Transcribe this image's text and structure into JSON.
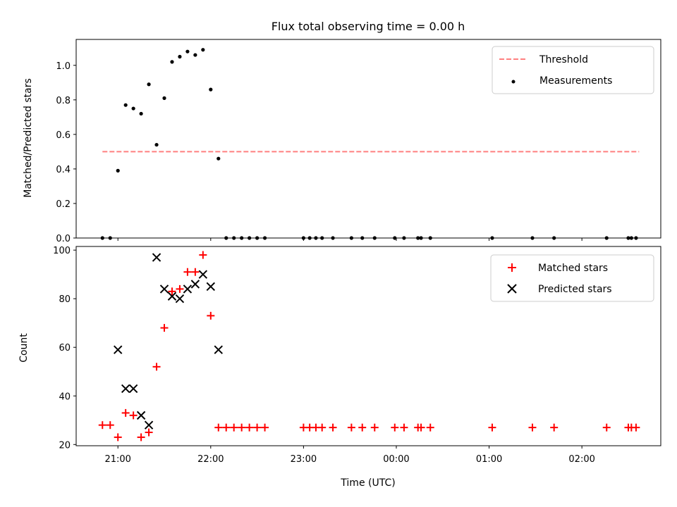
{
  "chart_data": [
    {
      "type": "scatter",
      "title": "Flux total observing time = 0.00 h",
      "xlabel": "",
      "ylabel": "Matched/Predicted stars",
      "xaxis_type": "time",
      "xlim": [
        "20:33",
        "02:51"
      ],
      "ylim": [
        0,
        1.15
      ],
      "yticks": [
        "0.0",
        "0.2",
        "0.4",
        "0.6",
        "0.8",
        "1.0"
      ],
      "grid": false,
      "legend_placement": "top-right",
      "threshold": {
        "name": "Threshold",
        "value": 0.5,
        "x_start": "20:50",
        "x_end": "02:37",
        "color": "#ff8080",
        "style": "dashed"
      },
      "series": [
        {
          "name": "Measurements",
          "marker": "dot",
          "color": "#000000",
          "points": [
            [
              "20:50",
              0.0
            ],
            [
              "20:55",
              0.0
            ],
            [
              "21:00",
              0.39
            ],
            [
              "21:05",
              0.77
            ],
            [
              "21:10",
              0.75
            ],
            [
              "21:15",
              0.72
            ],
            [
              "21:20",
              0.89
            ],
            [
              "21:25",
              0.54
            ],
            [
              "21:30",
              0.81
            ],
            [
              "21:35",
              1.02
            ],
            [
              "21:40",
              1.05
            ],
            [
              "21:45",
              1.08
            ],
            [
              "21:50",
              1.06
            ],
            [
              "21:55",
              1.09
            ],
            [
              "22:00",
              0.86
            ],
            [
              "22:05",
              0.46
            ],
            [
              "22:10",
              0.0
            ],
            [
              "22:15",
              0.0
            ],
            [
              "22:20",
              0.0
            ],
            [
              "22:25",
              0.0
            ],
            [
              "22:30",
              0.0
            ],
            [
              "22:35",
              0.0
            ],
            [
              "23:00",
              0.0
            ],
            [
              "23:04",
              0.0
            ],
            [
              "23:08",
              0.0
            ],
            [
              "23:12",
              0.0
            ],
            [
              "23:19",
              0.0
            ],
            [
              "23:31",
              0.0
            ],
            [
              "23:38",
              0.0
            ],
            [
              "23:46",
              0.0
            ],
            [
              "23:59",
              0.0
            ],
            [
              "00:05",
              0.0
            ],
            [
              "00:14",
              0.0
            ],
            [
              "00:16",
              0.0
            ],
            [
              "00:22",
              0.0
            ],
            [
              "01:02",
              0.0
            ],
            [
              "01:28",
              0.0
            ],
            [
              "01:42",
              0.0
            ],
            [
              "02:16",
              0.0
            ],
            [
              "02:30",
              0.0
            ],
            [
              "02:32",
              0.0
            ],
            [
              "02:35",
              0.0
            ]
          ]
        }
      ]
    },
    {
      "type": "scatter",
      "title": "",
      "xlabel": "Time (UTC)",
      "ylabel": "Count",
      "xaxis_type": "time",
      "xlim": [
        "20:33",
        "02:51"
      ],
      "ylim": [
        19.5,
        101.5
      ],
      "xticks": [
        "21:00",
        "22:00",
        "23:00",
        "00:00",
        "01:00",
        "02:00"
      ],
      "yticks": [
        "20",
        "40",
        "60",
        "80",
        "100"
      ],
      "grid": false,
      "legend_placement": "top-right",
      "series": [
        {
          "name": "Matched stars",
          "marker": "plus",
          "color": "#ff0000",
          "points": [
            [
              "20:50",
              28
            ],
            [
              "20:55",
              28
            ],
            [
              "21:00",
              23
            ],
            [
              "21:05",
              33
            ],
            [
              "21:10",
              32
            ],
            [
              "21:15",
              23
            ],
            [
              "21:20",
              25
            ],
            [
              "21:25",
              52
            ],
            [
              "21:30",
              68
            ],
            [
              "21:35",
              83
            ],
            [
              "21:40",
              84
            ],
            [
              "21:45",
              91
            ],
            [
              "21:50",
              91
            ],
            [
              "21:55",
              98
            ],
            [
              "22:00",
              73
            ],
            [
              "22:05",
              27
            ],
            [
              "22:10",
              27
            ],
            [
              "22:15",
              27
            ],
            [
              "22:20",
              27
            ],
            [
              "22:25",
              27
            ],
            [
              "22:30",
              27
            ],
            [
              "22:35",
              27
            ],
            [
              "23:00",
              27
            ],
            [
              "23:04",
              27
            ],
            [
              "23:08",
              27
            ],
            [
              "23:12",
              27
            ],
            [
              "23:19",
              27
            ],
            [
              "23:31",
              27
            ],
            [
              "23:38",
              27
            ],
            [
              "23:46",
              27
            ],
            [
              "23:59",
              27
            ],
            [
              "00:05",
              27
            ],
            [
              "00:14",
              27
            ],
            [
              "00:16",
              27
            ],
            [
              "00:22",
              27
            ],
            [
              "01:02",
              27
            ],
            [
              "01:28",
              27
            ],
            [
              "01:42",
              27
            ],
            [
              "02:16",
              27
            ],
            [
              "02:30",
              27
            ],
            [
              "02:32",
              27
            ],
            [
              "02:35",
              27
            ]
          ]
        },
        {
          "name": "Predicted stars",
          "marker": "x",
          "color": "#000000",
          "points": [
            [
              "21:00",
              59
            ],
            [
              "21:05",
              43
            ],
            [
              "21:10",
              43
            ],
            [
              "21:15",
              32
            ],
            [
              "21:20",
              28
            ],
            [
              "21:25",
              97
            ],
            [
              "21:30",
              84
            ],
            [
              "21:35",
              81
            ],
            [
              "21:40",
              80
            ],
            [
              "21:45",
              84
            ],
            [
              "21:50",
              86
            ],
            [
              "21:55",
              90
            ],
            [
              "22:00",
              85
            ],
            [
              "22:05",
              59
            ]
          ]
        }
      ]
    }
  ]
}
